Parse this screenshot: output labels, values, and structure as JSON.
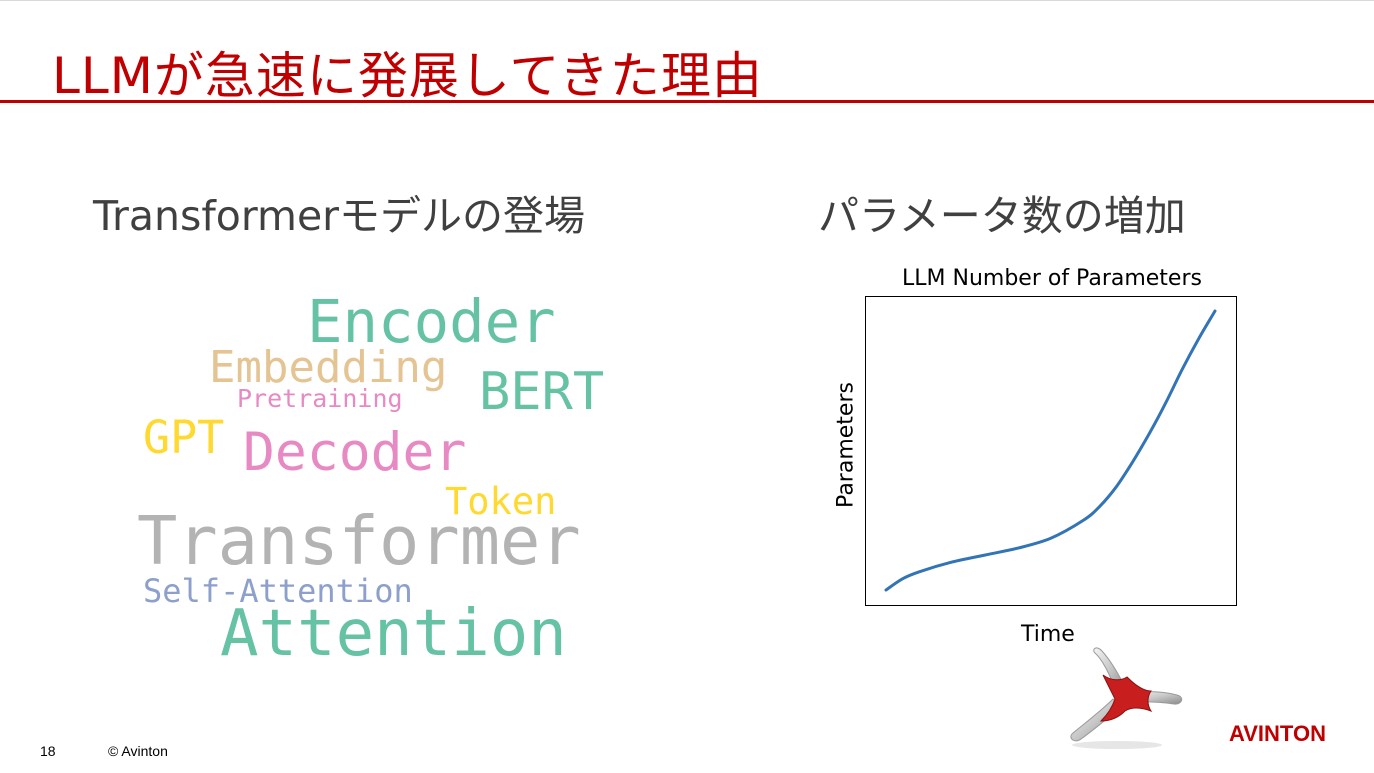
{
  "slide": {
    "title": "LLMが急速に発展してきた理由",
    "page_number": "18",
    "copyright": "© Avinton",
    "brand": "AVINTON"
  },
  "left_panel": {
    "heading": "Transformerモデルの登場",
    "word_cloud": [
      {
        "text": "Encoder",
        "color": "#66c2a5"
      },
      {
        "text": "Embedding",
        "color": "#e5c494"
      },
      {
        "text": "BERT",
        "color": "#66c2a5"
      },
      {
        "text": "Pretraining",
        "color": "#e78ac3"
      },
      {
        "text": "GPT",
        "color": "#ffd92f"
      },
      {
        "text": "Decoder",
        "color": "#e78ac3"
      },
      {
        "text": "Token",
        "color": "#ffd92f"
      },
      {
        "text": "Transformer",
        "color": "#b3b3b3"
      },
      {
        "text": "Self-Attention",
        "color": "#8da0cb"
      },
      {
        "text": "Attention",
        "color": "#66c2a5"
      }
    ]
  },
  "right_panel": {
    "heading": "パラメータ数の増加",
    "chart_data": {
      "type": "line",
      "title": "LLM Number of Parameters",
      "xlabel": "Time",
      "ylabel": "Parameters",
      "grid": false,
      "axis_ticks": false,
      "series": [
        {
          "color": "#3274b5",
          "x": [
            0,
            0.05,
            0.1,
            0.2,
            0.3,
            0.4,
            0.5,
            0.6,
            0.65,
            0.7,
            0.75,
            0.8,
            0.85,
            0.9,
            0.95,
            1.0
          ],
          "y": [
            0.0,
            0.04,
            0.065,
            0.1,
            0.125,
            0.15,
            0.185,
            0.25,
            0.3,
            0.37,
            0.46,
            0.56,
            0.67,
            0.79,
            0.9,
            1.0
          ]
        }
      ]
    }
  }
}
